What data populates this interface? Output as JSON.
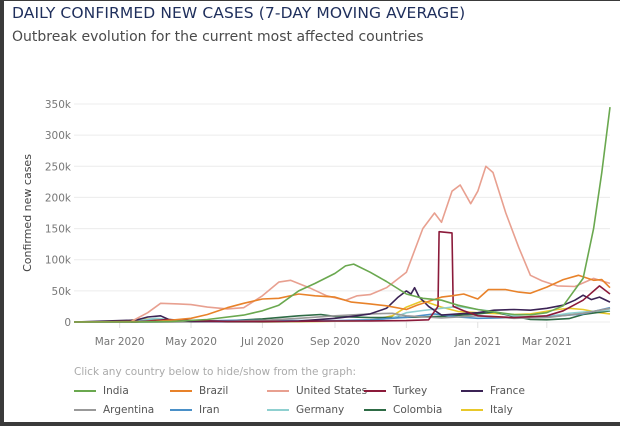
{
  "header": {
    "title": "DAILY CONFIRMED NEW CASES (7-DAY MOVING AVERAGE)",
    "subtitle": "Outbreak evolution for the current most affected countries"
  },
  "legend_hint": "Click any country below to hide/show from the graph:",
  "chart_data": {
    "type": "line",
    "title": "DAILY CONFIRMED NEW CASES (7-DAY MOVING AVERAGE)",
    "subtitle": "Outbreak evolution for the current most affected countries",
    "xlabel": "",
    "ylabel": "Confirmed new cases",
    "ylim": [
      0,
      350000
    ],
    "xlim": [
      "2020-01-22",
      "2021-04-24"
    ],
    "grid": true,
    "legend_position": "bottom",
    "y_ticks": [
      {
        "value": 0,
        "label": "0"
      },
      {
        "value": 50000,
        "label": "50k"
      },
      {
        "value": 100000,
        "label": "100k"
      },
      {
        "value": 150000,
        "label": "150k"
      },
      {
        "value": 200000,
        "label": "200k"
      },
      {
        "value": 250000,
        "label": "250k"
      },
      {
        "value": 300000,
        "label": "300k"
      },
      {
        "value": 350000,
        "label": "350k"
      }
    ],
    "x_ticks": [
      {
        "date": "2020-03-01",
        "label": "Mar 2020"
      },
      {
        "date": "2020-05-01",
        "label": "May 2020"
      },
      {
        "date": "2020-07-01",
        "label": "Jul 2020"
      },
      {
        "date": "2020-09-01",
        "label": "Sep 2020"
      },
      {
        "date": "2020-11-01",
        "label": "Nov 2020"
      },
      {
        "date": "2021-01-01",
        "label": "Jan 2021"
      },
      {
        "date": "2021-03-01",
        "label": "Mar 2021"
      }
    ],
    "series": [
      {
        "name": "India",
        "color": "#6aa84f",
        "points": [
          [
            "2020-01-22",
            0
          ],
          [
            "2020-03-15",
            0
          ],
          [
            "2020-04-15",
            1000
          ],
          [
            "2020-05-15",
            4000
          ],
          [
            "2020-06-15",
            11000
          ],
          [
            "2020-07-01",
            18000
          ],
          [
            "2020-07-15",
            27000
          ],
          [
            "2020-08-01",
            50000
          ],
          [
            "2020-08-15",
            62000
          ],
          [
            "2020-09-01",
            78000
          ],
          [
            "2020-09-10",
            90000
          ],
          [
            "2020-09-17",
            93000
          ],
          [
            "2020-10-01",
            80000
          ],
          [
            "2020-10-15",
            65000
          ],
          [
            "2020-11-01",
            45000
          ],
          [
            "2020-11-15",
            38000
          ],
          [
            "2020-12-01",
            35000
          ],
          [
            "2020-12-15",
            27000
          ],
          [
            "2021-01-01",
            20000
          ],
          [
            "2021-01-15",
            16000
          ],
          [
            "2021-02-01",
            12000
          ],
          [
            "2021-02-15",
            11500
          ],
          [
            "2021-03-01",
            15000
          ],
          [
            "2021-03-15",
            26000
          ],
          [
            "2021-04-01",
            70000
          ],
          [
            "2021-04-10",
            150000
          ],
          [
            "2021-04-17",
            240000
          ],
          [
            "2021-04-24",
            345000
          ]
        ]
      },
      {
        "name": "Brazil",
        "color": "#e8822a",
        "points": [
          [
            "2020-01-22",
            0
          ],
          [
            "2020-04-01",
            1000
          ],
          [
            "2020-04-15",
            3000
          ],
          [
            "2020-05-01",
            6000
          ],
          [
            "2020-05-15",
            12000
          ],
          [
            "2020-06-01",
            23000
          ],
          [
            "2020-06-15",
            30000
          ],
          [
            "2020-07-01",
            37000
          ],
          [
            "2020-07-15",
            38000
          ],
          [
            "2020-08-01",
            45000
          ],
          [
            "2020-08-15",
            42000
          ],
          [
            "2020-09-01",
            40000
          ],
          [
            "2020-09-15",
            32000
          ],
          [
            "2020-10-01",
            29000
          ],
          [
            "2020-10-15",
            26000
          ],
          [
            "2020-11-01",
            20000
          ],
          [
            "2020-11-10",
            27000
          ],
          [
            "2020-11-20",
            33000
          ],
          [
            "2020-12-01",
            40000
          ],
          [
            "2020-12-10",
            42000
          ],
          [
            "2020-12-20",
            45000
          ],
          [
            "2021-01-01",
            37000
          ],
          [
            "2021-01-10",
            52000
          ],
          [
            "2021-01-25",
            52000
          ],
          [
            "2021-02-05",
            48000
          ],
          [
            "2021-02-15",
            46000
          ],
          [
            "2021-03-01",
            56000
          ],
          [
            "2021-03-15",
            68000
          ],
          [
            "2021-03-28",
            75000
          ],
          [
            "2021-04-10",
            67000
          ],
          [
            "2021-04-17",
            68000
          ],
          [
            "2021-04-24",
            55000
          ]
        ]
      },
      {
        "name": "United States",
        "color": "#e8a090",
        "points": [
          [
            "2020-01-22",
            0
          ],
          [
            "2020-03-10",
            0
          ],
          [
            "2020-03-25",
            15000
          ],
          [
            "2020-04-05",
            30000
          ],
          [
            "2020-04-20",
            29000
          ],
          [
            "2020-05-01",
            28000
          ],
          [
            "2020-05-15",
            24000
          ],
          [
            "2020-06-01",
            21000
          ],
          [
            "2020-06-15",
            23000
          ],
          [
            "2020-07-01",
            42000
          ],
          [
            "2020-07-15",
            64000
          ],
          [
            "2020-07-25",
            67000
          ],
          [
            "2020-08-10",
            55000
          ],
          [
            "2020-08-25",
            42000
          ],
          [
            "2020-09-10",
            35000
          ],
          [
            "2020-09-20",
            42000
          ],
          [
            "2020-10-01",
            44000
          ],
          [
            "2020-10-15",
            55000
          ],
          [
            "2020-11-01",
            80000
          ],
          [
            "2020-11-15",
            150000
          ],
          [
            "2020-11-25",
            175000
          ],
          [
            "2020-12-01",
            160000
          ],
          [
            "2020-12-10",
            210000
          ],
          [
            "2020-12-17",
            220000
          ],
          [
            "2020-12-26",
            190000
          ],
          [
            "2021-01-01",
            210000
          ],
          [
            "2021-01-08",
            250000
          ],
          [
            "2021-01-14",
            240000
          ],
          [
            "2021-01-25",
            175000
          ],
          [
            "2021-02-05",
            120000
          ],
          [
            "2021-02-15",
            75000
          ],
          [
            "2021-02-25",
            66000
          ],
          [
            "2021-03-10",
            58000
          ],
          [
            "2021-03-25",
            57000
          ],
          [
            "2021-04-10",
            70000
          ],
          [
            "2021-04-24",
            62000
          ]
        ]
      },
      {
        "name": "Turkey",
        "color": "#8b1a3a",
        "points": [
          [
            "2020-01-22",
            0
          ],
          [
            "2020-03-15",
            0
          ],
          [
            "2020-04-10",
            4000
          ],
          [
            "2020-05-01",
            2500
          ],
          [
            "2020-06-01",
            1000
          ],
          [
            "2020-07-01",
            1000
          ],
          [
            "2020-08-01",
            1200
          ],
          [
            "2020-09-01",
            1600
          ],
          [
            "2020-10-01",
            1700
          ],
          [
            "2020-11-01",
            2300
          ],
          [
            "2020-11-20",
            3500
          ],
          [
            "2020-11-28",
            25000
          ],
          [
            "2020-11-29",
            145000
          ],
          [
            "2020-12-10",
            143000
          ],
          [
            "2020-12-11",
            25000
          ],
          [
            "2020-12-20",
            18000
          ],
          [
            "2021-01-01",
            10000
          ],
          [
            "2021-02-01",
            7000
          ],
          [
            "2021-03-01",
            10000
          ],
          [
            "2021-03-15",
            18000
          ],
          [
            "2021-04-01",
            35000
          ],
          [
            "2021-04-15",
            58000
          ],
          [
            "2021-04-24",
            45000
          ]
        ]
      },
      {
        "name": "France",
        "color": "#3b2355",
        "points": [
          [
            "2020-01-22",
            0
          ],
          [
            "2020-03-15",
            3000
          ],
          [
            "2020-03-25",
            8000
          ],
          [
            "2020-04-05",
            10000
          ],
          [
            "2020-04-12",
            4000
          ],
          [
            "2020-05-01",
            1000
          ],
          [
            "2020-06-01",
            500
          ],
          [
            "2020-07-01",
            500
          ],
          [
            "2020-08-01",
            1500
          ],
          [
            "2020-09-01",
            6000
          ],
          [
            "2020-09-15",
            9000
          ],
          [
            "2020-10-01",
            13000
          ],
          [
            "2020-10-15",
            22000
          ],
          [
            "2020-10-25",
            40000
          ],
          [
            "2020-11-01",
            50000
          ],
          [
            "2020-11-05",
            45000
          ],
          [
            "2020-11-08",
            55000
          ],
          [
            "2020-11-12",
            40000
          ],
          [
            "2020-11-20",
            25000
          ],
          [
            "2020-12-01",
            11000
          ],
          [
            "2020-12-15",
            13000
          ],
          [
            "2021-01-01",
            15000
          ],
          [
            "2021-01-15",
            19000
          ],
          [
            "2021-02-01",
            20000
          ],
          [
            "2021-02-15",
            19000
          ],
          [
            "2021-03-01",
            22000
          ],
          [
            "2021-03-15",
            27000
          ],
          [
            "2021-03-25",
            35000
          ],
          [
            "2021-04-01",
            43000
          ],
          [
            "2021-04-08",
            36000
          ],
          [
            "2021-04-15",
            40000
          ],
          [
            "2021-04-24",
            32000
          ]
        ]
      },
      {
        "name": "Argentina",
        "color": "#999999",
        "points": [
          [
            "2020-01-22",
            0
          ],
          [
            "2020-05-01",
            100
          ],
          [
            "2020-06-01",
            1000
          ],
          [
            "2020-07-01",
            2500
          ],
          [
            "2020-08-01",
            6000
          ],
          [
            "2020-09-01",
            10000
          ],
          [
            "2020-10-01",
            13000
          ],
          [
            "2020-10-20",
            14000
          ],
          [
            "2020-11-01",
            10000
          ],
          [
            "2020-12-01",
            6500
          ],
          [
            "2021-01-01",
            10000
          ],
          [
            "2021-02-01",
            6000
          ],
          [
            "2021-03-01",
            7000
          ],
          [
            "2021-04-01",
            14000
          ],
          [
            "2021-04-24",
            22000
          ]
        ]
      },
      {
        "name": "Iran",
        "color": "#4a90c8",
        "points": [
          [
            "2020-01-22",
            0
          ],
          [
            "2020-03-01",
            500
          ],
          [
            "2020-04-01",
            2800
          ],
          [
            "2020-05-01",
            1200
          ],
          [
            "2020-06-01",
            2500
          ],
          [
            "2020-07-01",
            2400
          ],
          [
            "2020-08-01",
            2400
          ],
          [
            "2020-09-01",
            2100
          ],
          [
            "2020-10-01",
            3500
          ],
          [
            "2020-11-01",
            7500
          ],
          [
            "2020-11-25",
            13000
          ],
          [
            "2020-12-15",
            8000
          ],
          [
            "2021-01-01",
            6000
          ],
          [
            "2021-02-01",
            7000
          ],
          [
            "2021-03-01",
            8000
          ],
          [
            "2021-04-01",
            13000
          ],
          [
            "2021-04-24",
            23000
          ]
        ]
      },
      {
        "name": "Germany",
        "color": "#8fd0d0",
        "points": [
          [
            "2020-01-22",
            0
          ],
          [
            "2020-03-10",
            500
          ],
          [
            "2020-04-01",
            6000
          ],
          [
            "2020-05-01",
            1200
          ],
          [
            "2020-06-01",
            400
          ],
          [
            "2020-07-01",
            400
          ],
          [
            "2020-08-01",
            800
          ],
          [
            "2020-09-01",
            1400
          ],
          [
            "2020-10-01",
            2200
          ],
          [
            "2020-10-20",
            6500
          ],
          [
            "2020-11-01",
            15000
          ],
          [
            "2020-11-15",
            18500
          ],
          [
            "2020-12-15",
            25000
          ],
          [
            "2021-01-01",
            20000
          ],
          [
            "2021-01-15",
            17000
          ],
          [
            "2021-02-01",
            10000
          ],
          [
            "2021-02-15",
            7500
          ],
          [
            "2021-03-01",
            8500
          ],
          [
            "2021-03-20",
            14000
          ],
          [
            "2021-04-01",
            16000
          ],
          [
            "2021-04-24",
            19000
          ]
        ]
      },
      {
        "name": "Colombia",
        "color": "#2e6b45",
        "points": [
          [
            "2020-01-22",
            0
          ],
          [
            "2020-04-01",
            100
          ],
          [
            "2020-05-01",
            500
          ],
          [
            "2020-06-01",
            2000
          ],
          [
            "2020-07-01",
            5000
          ],
          [
            "2020-08-01",
            10000
          ],
          [
            "2020-08-20",
            12000
          ],
          [
            "2020-09-01",
            9000
          ],
          [
            "2020-10-01",
            7000
          ],
          [
            "2020-11-01",
            7500
          ],
          [
            "2020-12-01",
            9000
          ],
          [
            "2021-01-01",
            13000
          ],
          [
            "2021-01-15",
            16000
          ],
          [
            "2021-02-01",
            9000
          ],
          [
            "2021-02-15",
            4000
          ],
          [
            "2021-03-01",
            3500
          ],
          [
            "2021-03-20",
            5500
          ],
          [
            "2021-04-01",
            12000
          ],
          [
            "2021-04-24",
            18000
          ]
        ]
      },
      {
        "name": "Italy",
        "color": "#e8c82a",
        "points": [
          [
            "2020-01-22",
            0
          ],
          [
            "2020-03-01",
            500
          ],
          [
            "2020-03-20",
            5000
          ],
          [
            "2020-04-01",
            4500
          ],
          [
            "2020-05-01",
            1800
          ],
          [
            "2020-06-01",
            300
          ],
          [
            "2020-07-01",
            200
          ],
          [
            "2020-08-01",
            300
          ],
          [
            "2020-09-01",
            1300
          ],
          [
            "2020-10-01",
            2200
          ],
          [
            "2020-10-20",
            10000
          ],
          [
            "2020-11-01",
            24000
          ],
          [
            "2020-11-15",
            34000
          ],
          [
            "2020-12-01",
            24000
          ],
          [
            "2020-12-15",
            17000
          ],
          [
            "2021-01-01",
            15000
          ],
          [
            "2021-02-01",
            12000
          ],
          [
            "2021-02-15",
            13000
          ],
          [
            "2021-03-10",
            20000
          ],
          [
            "2021-03-20",
            22000
          ],
          [
            "2021-04-01",
            20000
          ],
          [
            "2021-04-15",
            15000
          ],
          [
            "2021-04-24",
            13000
          ]
        ]
      }
    ]
  }
}
